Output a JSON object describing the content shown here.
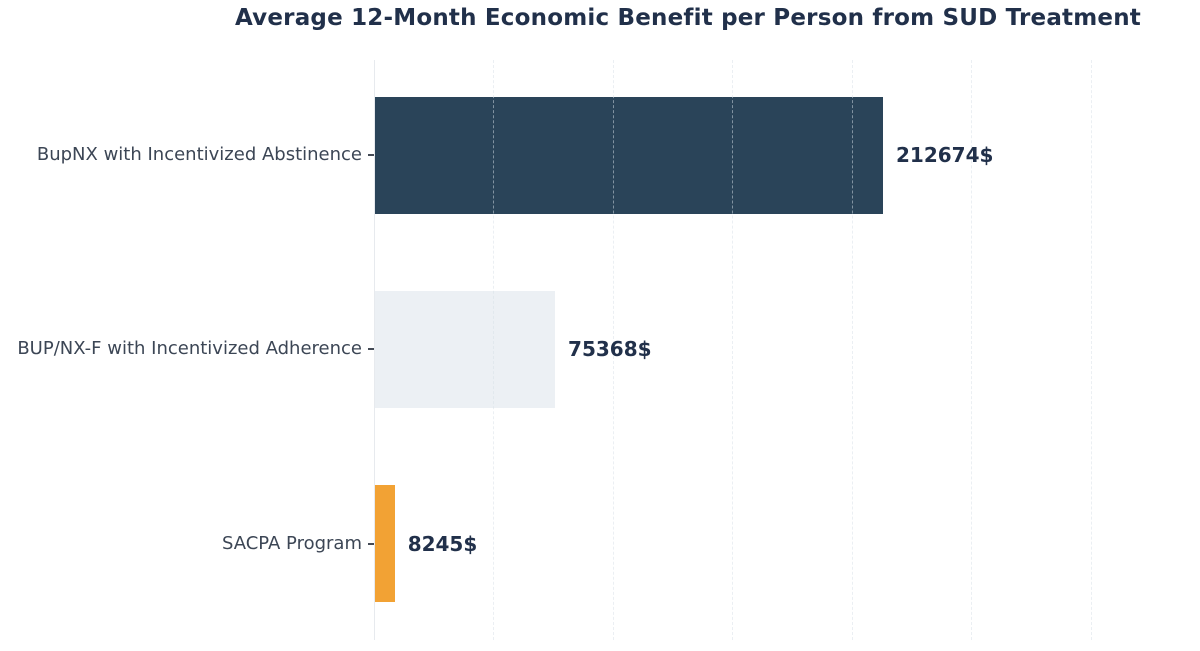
{
  "title": "Average 12-Month Economic Benefit per Person from SUD Treatment",
  "chart_data": {
    "type": "bar",
    "orientation": "horizontal",
    "title": "Average 12-Month Economic Benefit per Person from SUD Treatment",
    "categories": [
      "BupNX with Incentivized Abstinence",
      "BUP/NX-F with Incentivized Adherence",
      "SACPA Program"
    ],
    "values": [
      212674,
      75368,
      8245
    ],
    "value_labels": [
      "212674$",
      "75368$",
      "8245$"
    ],
    "bar_colors": [
      "#2A4459",
      "#ECF0F4",
      "#F2A234"
    ],
    "xlabel": "",
    "ylabel": "",
    "xlim": [
      0,
      343700
    ],
    "grid": {
      "show": true,
      "style": "dashed",
      "tick_interval": 50000,
      "lines": [
        50000,
        100000,
        150000,
        200000,
        250000,
        300000
      ]
    },
    "legend": null
  },
  "colors": {
    "background": "#FFFFFF",
    "title_text": "#21304A",
    "category_label_text": "#3C4655",
    "value_label_text": "#21304A",
    "axis_line": "#E7EAEE",
    "gridline": "#D8E1E8",
    "tick": "#444A55",
    "bar_primary": "#2A4459",
    "bar_secondary": "#ECF0F4",
    "bar_accent": "#F2A234"
  }
}
